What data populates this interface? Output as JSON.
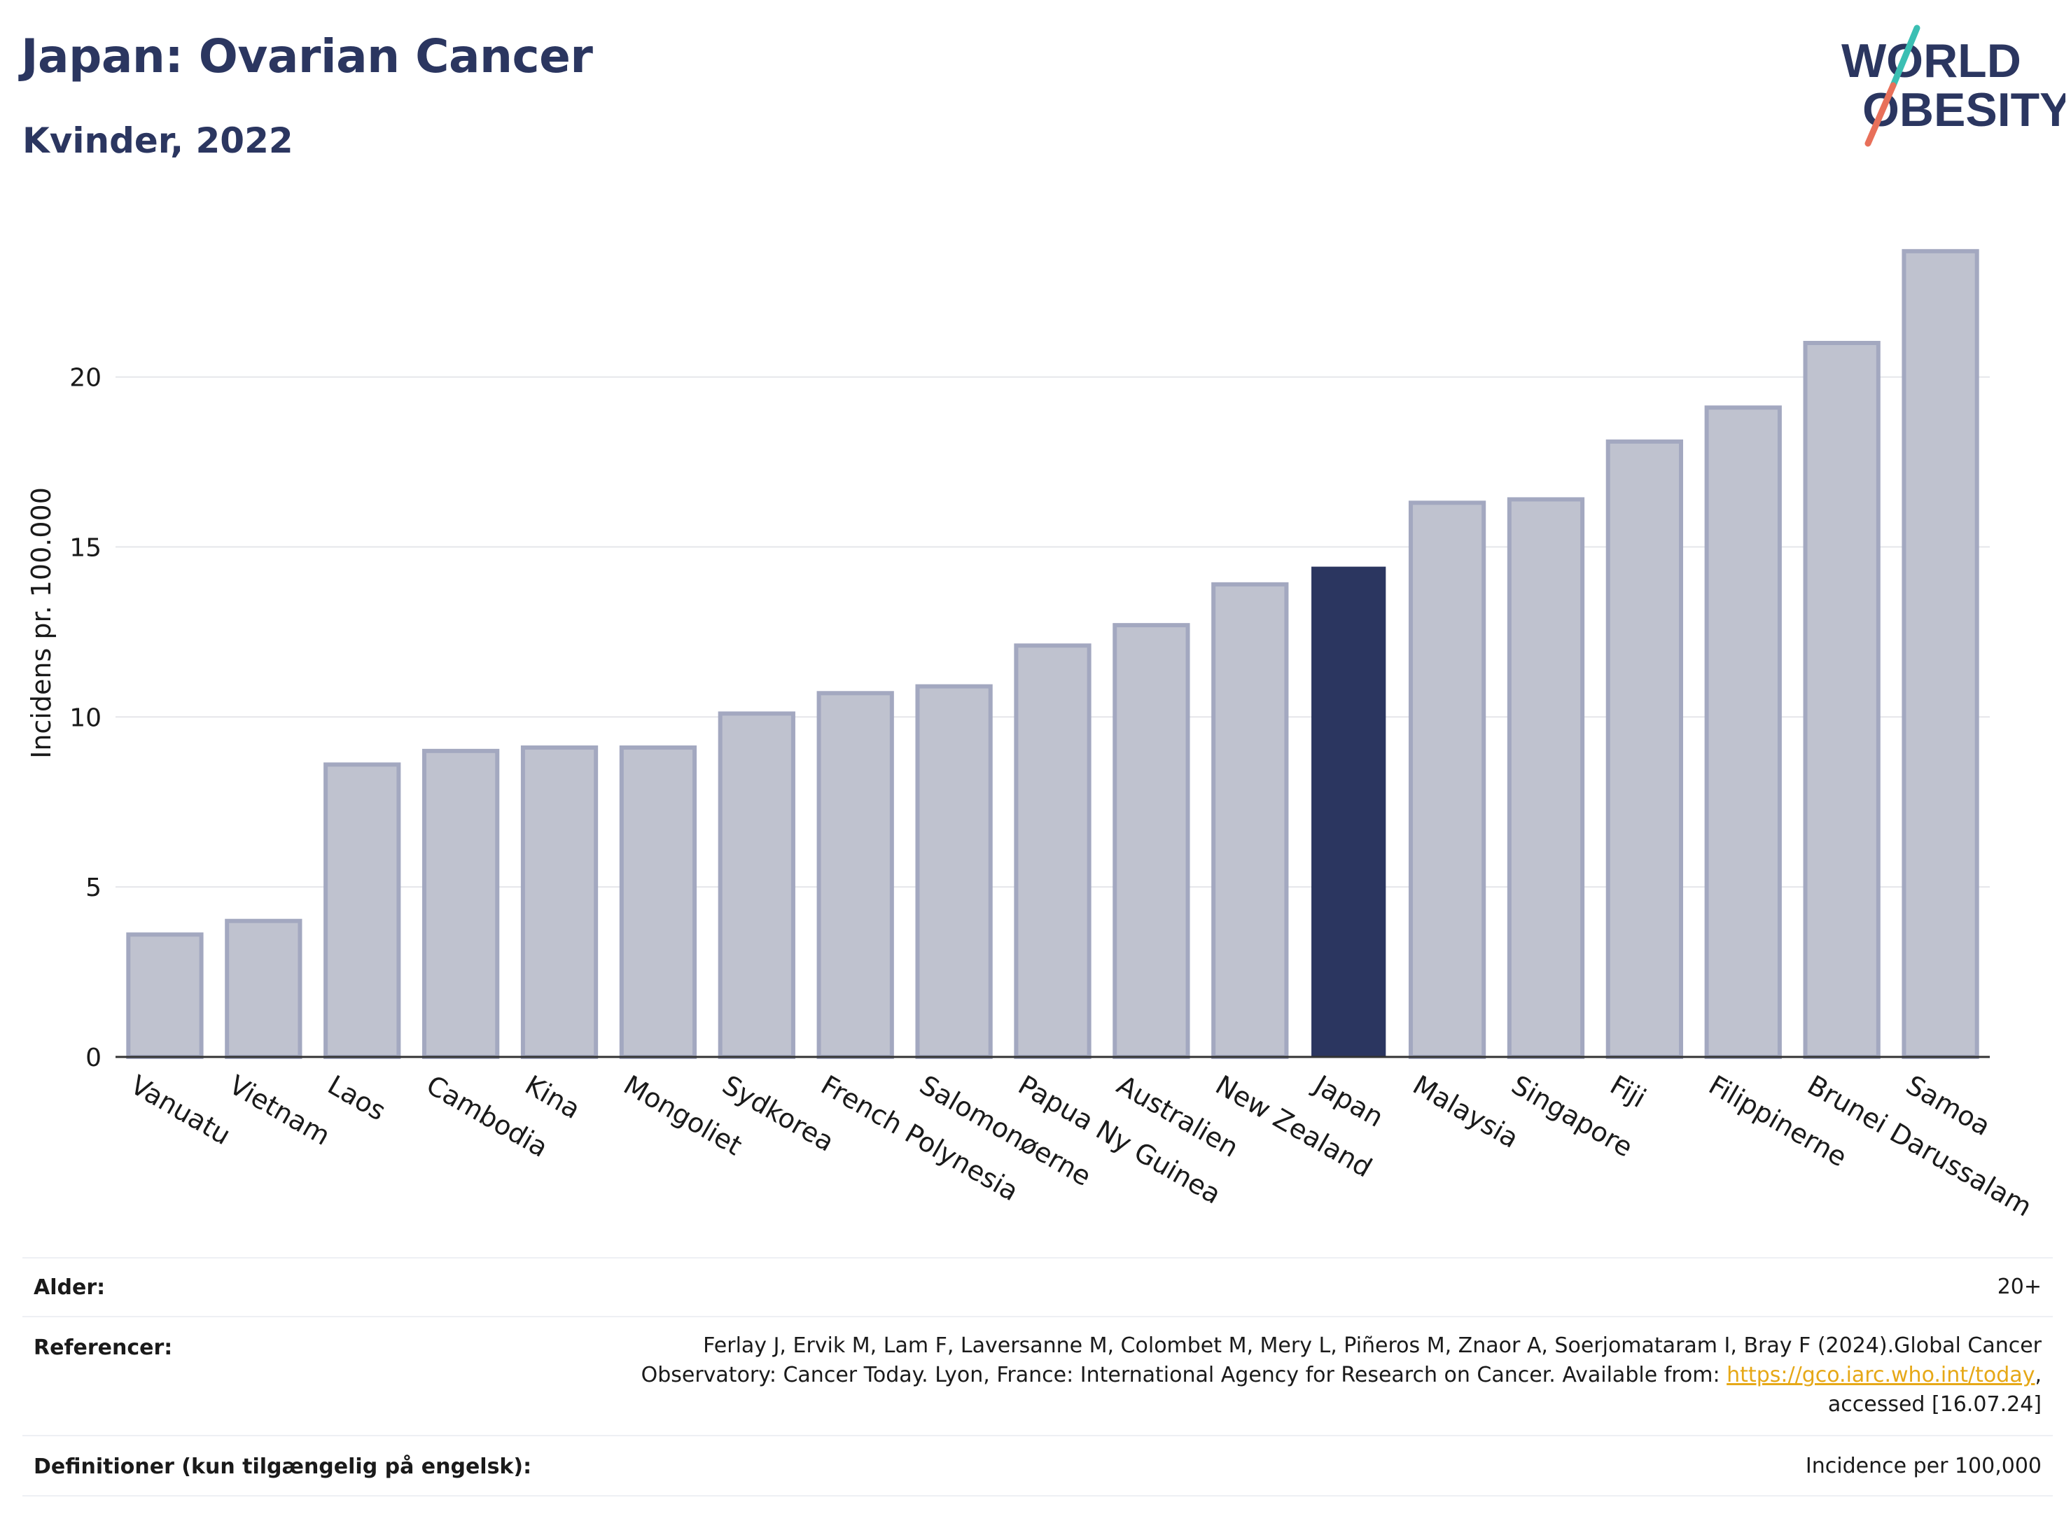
{
  "header": {
    "title": "Japan: Ovarian Cancer",
    "subtitle": "Kvinder, 2022",
    "logo_line1": "WORLD",
    "logo_line2": "OBESITY"
  },
  "colors": {
    "bar_default": "#bfc2cf",
    "bar_outline": "#a3a8c0",
    "bar_highlight": "#2b3660",
    "grid": "#e5e6ea",
    "axis": "#333333",
    "title": "#2b3660",
    "logo_teal": "#3bbfb3",
    "logo_coral": "#e8705a"
  },
  "chart_data": {
    "type": "bar",
    "title": "",
    "xlabel": "",
    "ylabel": "Incidens pr. 100.000",
    "ylim": [
      0,
      24.5
    ],
    "yticks": [
      0,
      5,
      10,
      15,
      20
    ],
    "grid": true,
    "highlight": "Japan",
    "categories": [
      "Vanuatu",
      "Vietnam",
      "Laos",
      "Cambodia",
      "Kina",
      "Mongoliet",
      "Sydkorea",
      "French Polynesia",
      "Salomonøerne",
      "Papua Ny Guinea",
      "Australien",
      "New Zealand",
      "Japan",
      "Malaysia",
      "Singapore",
      "Fiji",
      "Filippinerne",
      "Brunei Darussalam",
      "Samoa"
    ],
    "values": [
      3.6,
      4.0,
      8.6,
      9.0,
      9.1,
      9.1,
      10.1,
      10.7,
      10.9,
      12.1,
      12.7,
      13.9,
      14.4,
      16.3,
      16.4,
      18.1,
      19.1,
      21.0,
      23.7
    ]
  },
  "info": {
    "age_label": "Alder:",
    "age_value": "20+",
    "ref_label": "Referencer:",
    "ref_line1": "Ferlay J, Ervik M, Lam F, Laversanne M, Colombet M, Mery L, Piñeros M, Znaor A, Soerjomataram I, Bray F (2024).Global Cancer",
    "ref_line2_pre": "Observatory: Cancer Today. Lyon, France: International Agency for Research on Cancer. Available from: ",
    "ref_link": "https://gco.iarc.who.int/today",
    "ref_line2_post": ",",
    "ref_line3": "accessed [16.07.24]",
    "def_label": "Definitioner (kun tilgængelig på engelsk):",
    "def_value": "Incidence per 100,000"
  }
}
